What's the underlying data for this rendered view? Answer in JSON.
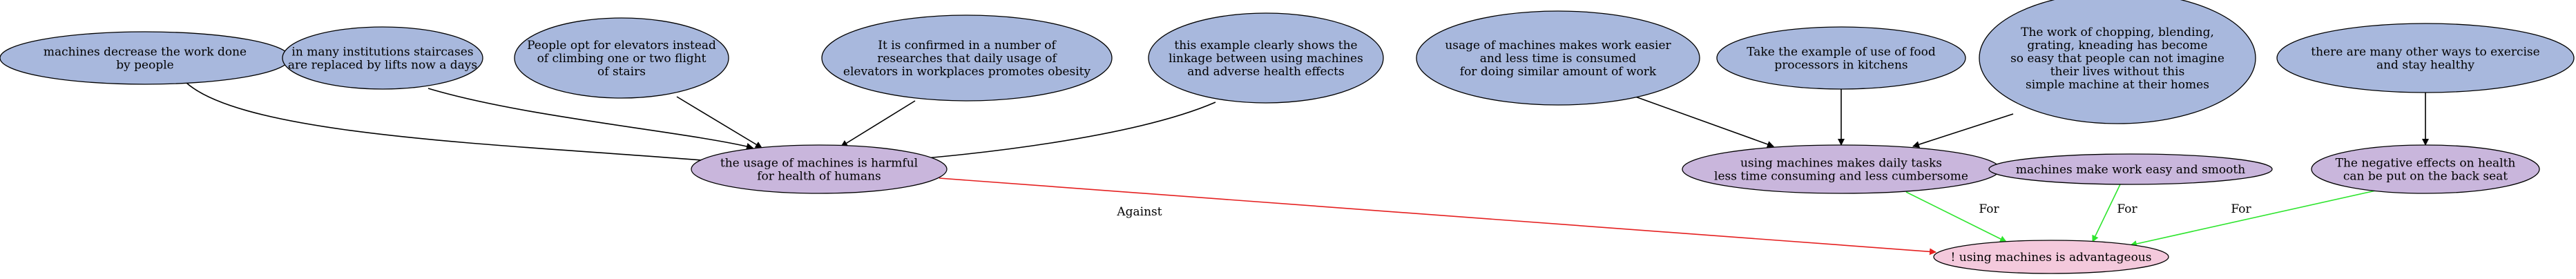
{
  "diagram": {
    "type": "argument-graph",
    "colors": {
      "premise_fill": "#a8b8dd",
      "claim_fill": "#c9b6dc",
      "conclusion_fill": "#f4c9dc",
      "node_stroke": "#000000",
      "edge_default": "#000000",
      "edge_for": "#2ee52e",
      "edge_against": "#e52020"
    },
    "nodes": [
      {
        "id": "p1",
        "kind": "premise",
        "lines": [
          "machines decrease the work done",
          "by people"
        ]
      },
      {
        "id": "p2",
        "kind": "premise",
        "lines": [
          "in many institutions staircases",
          "are replaced by lifts now a days"
        ]
      },
      {
        "id": "p3",
        "kind": "premise",
        "lines": [
          "People opt for elevators instead",
          "of climbing one or two flight",
          "of stairs"
        ]
      },
      {
        "id": "p4",
        "kind": "premise",
        "lines": [
          "It is confirmed in a number of",
          "researches that daily usage of",
          "elevators in workplaces promotes obesity"
        ]
      },
      {
        "id": "p5",
        "kind": "premise",
        "lines": [
          "this example clearly shows the",
          "linkage between using machines",
          "and adverse health effects"
        ]
      },
      {
        "id": "p6",
        "kind": "premise",
        "lines": [
          "usage of machines makes work easier",
          "and less time is consumed",
          "for doing similar amount of work"
        ]
      },
      {
        "id": "p7",
        "kind": "premise",
        "lines": [
          "Take the example of use of food",
          "processors in kitchens"
        ]
      },
      {
        "id": "p8",
        "kind": "premise",
        "lines": [
          "The work of chopping, blending,",
          "grating, kneading has become",
          "so easy that people can not imagine",
          "their lives without this",
          "simple machine at their homes"
        ]
      },
      {
        "id": "p9",
        "kind": "premise",
        "lines": [
          "there are many other ways to exercise",
          "and stay healthy"
        ]
      },
      {
        "id": "c1",
        "kind": "claim",
        "lines": [
          "the usage of machines is harmful",
          "for health of humans"
        ]
      },
      {
        "id": "c2",
        "kind": "claim",
        "lines": [
          "using machines makes daily tasks",
          "less time consuming and less cumbersome"
        ]
      },
      {
        "id": "c3",
        "kind": "claim",
        "lines": [
          "machines make work easy and smooth"
        ]
      },
      {
        "id": "c4",
        "kind": "claim",
        "lines": [
          "The negative effects on health",
          "can be put on the back seat"
        ]
      },
      {
        "id": "t",
        "kind": "conclusion",
        "lines": [
          "! using machines is advantageous"
        ]
      }
    ],
    "edges": [
      {
        "from": "p1",
        "to": "c1",
        "relation": "support",
        "label": ""
      },
      {
        "from": "p2",
        "to": "c1",
        "relation": "support",
        "label": ""
      },
      {
        "from": "p3",
        "to": "c1",
        "relation": "support",
        "label": ""
      },
      {
        "from": "p4",
        "to": "c1",
        "relation": "support",
        "label": ""
      },
      {
        "from": "p5",
        "to": "c1",
        "relation": "support",
        "label": ""
      },
      {
        "from": "p6",
        "to": "c2",
        "relation": "support",
        "label": ""
      },
      {
        "from": "p7",
        "to": "c2",
        "relation": "support",
        "label": ""
      },
      {
        "from": "p8",
        "to": "c2",
        "relation": "support",
        "label": ""
      },
      {
        "from": "p9",
        "to": "c4",
        "relation": "support",
        "label": ""
      },
      {
        "from": "c1",
        "to": "t",
        "relation": "against",
        "label": "Against"
      },
      {
        "from": "c2",
        "to": "t",
        "relation": "for",
        "label": "For"
      },
      {
        "from": "c3",
        "to": "t",
        "relation": "for",
        "label": "For"
      },
      {
        "from": "c4",
        "to": "t",
        "relation": "for",
        "label": "For"
      }
    ]
  }
}
